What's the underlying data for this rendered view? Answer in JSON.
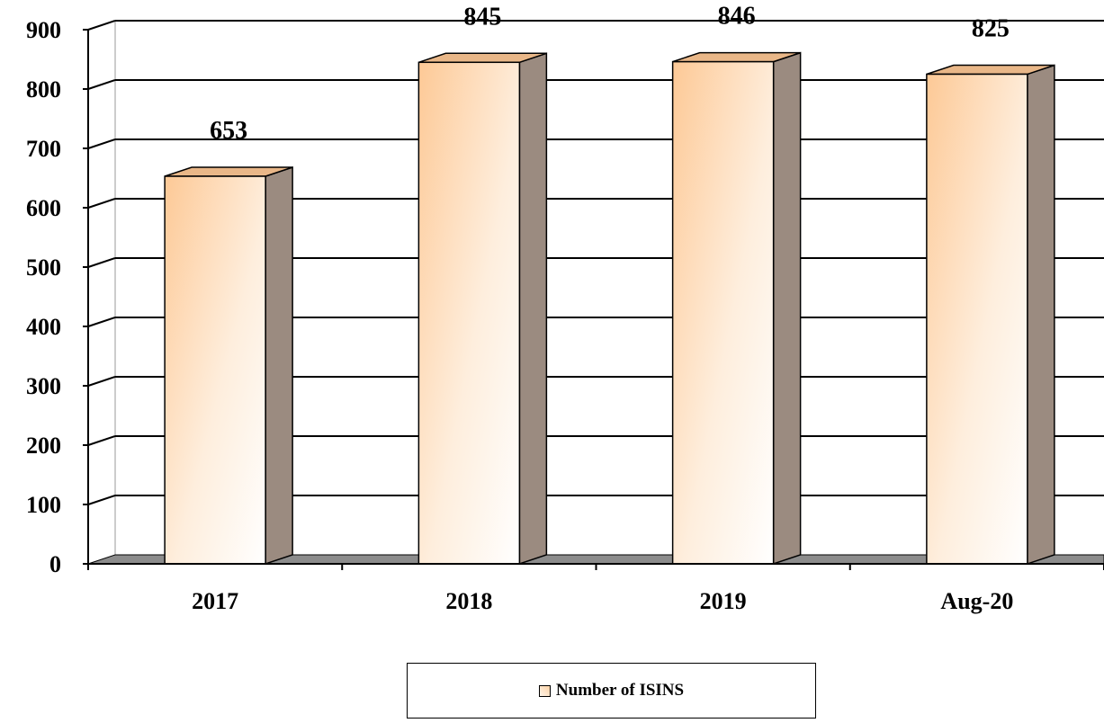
{
  "chart_data": {
    "type": "bar",
    "categories": [
      "2017",
      "2018",
      "2019",
      "Aug-20"
    ],
    "series": [
      {
        "name": "Number of ISINS",
        "values": [
          653,
          845,
          846,
          825
        ]
      }
    ],
    "data_labels": [
      "653",
      "845",
      "846",
      "825"
    ],
    "ylim": [
      0,
      900
    ],
    "yticks": [
      0,
      100,
      200,
      300,
      400,
      500,
      600,
      700,
      800,
      900
    ],
    "ytick_labels": [
      "0",
      "100",
      "200",
      "300",
      "400",
      "500",
      "600",
      "700",
      "800",
      "900"
    ],
    "grid": true,
    "legend_position": "bottom",
    "style": "3d",
    "colors": {
      "bar_light": "#fff6ec",
      "bar_dark": "#fcc690",
      "bar_top": "#e9c2a0",
      "bar_side": "#9b8b80",
      "floor": "#8c8c8c",
      "gridline": "#000000"
    }
  },
  "legend": {
    "label": "Number of ISINS"
  }
}
